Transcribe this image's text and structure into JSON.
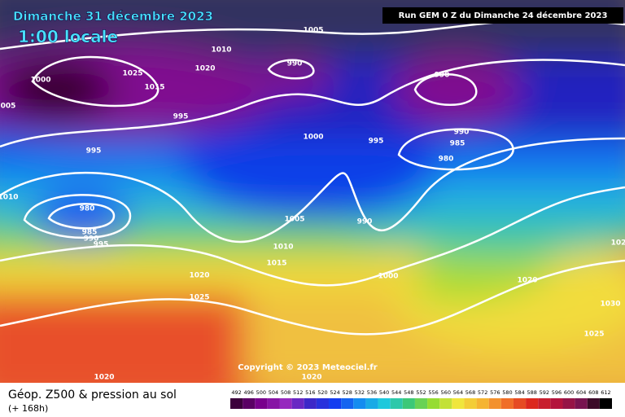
{
  "header": {
    "date": "Dimanche 31 décembre 2023",
    "time": "1:00 locale",
    "run": "Run GEM 0 Z du Dimanche 24 décembre 2023"
  },
  "copyright": "Copyright © 2023 Meteociel.fr",
  "footer": {
    "title": "Géop. Z500 & pression au sol",
    "lead": "(+ 168h)"
  },
  "scale": [
    "492",
    "496",
    "500",
    "504",
    "508",
    "512",
    "516",
    "520",
    "524",
    "528",
    "532",
    "536",
    "540",
    "544",
    "548",
    "552",
    "556",
    "560",
    "564",
    "568",
    "572",
    "576",
    "580",
    "584",
    "588",
    "592",
    "596",
    "600",
    "604",
    "608",
    "612"
  ],
  "isobar_labels": [
    "1005",
    "1010",
    "990",
    "1020",
    "1025",
    "1000",
    "1015",
    "990",
    "005",
    "995",
    "1000",
    "995",
    "990",
    "985",
    "980",
    "995",
    "1010",
    "980",
    "1005",
    "990",
    "985",
    "990",
    "995",
    "1010",
    "1015",
    "1020",
    "1000",
    "1020",
    "1025",
    "1030",
    "1025",
    "1020",
    "1020",
    "102"
  ]
}
